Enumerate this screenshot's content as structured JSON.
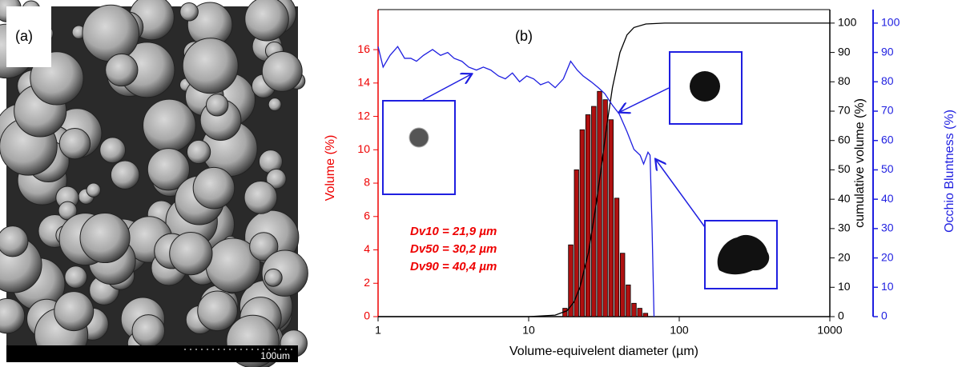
{
  "panel_a": {
    "label": "(a)",
    "scale_bar": "100um"
  },
  "chart_data": {
    "type": "histogram",
    "panel_label": "(b)",
    "xlabel": "Volume-equivelent diameter (µm)",
    "ylabel": "Volume (%)",
    "y2label": "cumulative volume (%)",
    "y3label": "Occhio Bluntness (%)",
    "log_x": true,
    "xlim": [
      1,
      1000
    ],
    "xticks": [
      1,
      10,
      100,
      1000
    ],
    "ylim": [
      0,
      18.4
    ],
    "yticks": [
      0,
      2,
      4,
      6,
      8,
      10,
      12,
      14,
      16
    ],
    "y2lim": [
      0,
      104.6
    ],
    "y2ticks": [
      0,
      10,
      20,
      30,
      40,
      50,
      60,
      70,
      80,
      90,
      100
    ],
    "y3lim": [
      0,
      104.6
    ],
    "y3ticks": [
      0,
      10,
      20,
      30,
      40,
      50,
      60,
      70,
      80,
      90,
      100
    ],
    "color": "#b01010",
    "bins": [
      16.7,
      18.2,
      19.9,
      21.7,
      23.7,
      25.9,
      28.3,
      30.9,
      33.7,
      36.8,
      40.2,
      43.9,
      47.9,
      52.3,
      57.1,
      62.4
    ],
    "values": [
      0.5,
      4.3,
      8.8,
      11.2,
      12.1,
      12.6,
      13.5,
      13.0,
      11.8,
      7.1,
      3.8,
      1.9,
      0.8,
      0.5,
      0.2
    ],
    "lines": [
      {
        "axis": "y2",
        "color": "#000000",
        "x": [
          1,
          10,
          15,
          18,
          20,
          21.9,
          25,
          28,
          30.2,
          33,
          36,
          40.4,
          45,
          50,
          60,
          80,
          1000
        ],
        "values": [
          0,
          0,
          0.5,
          2,
          5,
          10,
          22,
          38,
          50,
          65,
          78,
          90,
          96,
          98.5,
          99.7,
          100,
          100
        ]
      },
      {
        "axis": "y3",
        "color": "#1f1fe0",
        "x": [
          1,
          1.08,
          1.2,
          1.35,
          1.5,
          1.65,
          1.8,
          2.0,
          2.3,
          2.6,
          2.9,
          3.2,
          3.6,
          4.0,
          4.5,
          5.0,
          5.6,
          6.3,
          7.0,
          7.8,
          8.7,
          9.7,
          10.8,
          12,
          13.5,
          15,
          17,
          19,
          21,
          23,
          26,
          29,
          32,
          36,
          40,
          45,
          50,
          55,
          58,
          62,
          64,
          66,
          68
        ],
        "values": [
          92,
          85,
          89,
          92,
          88,
          88,
          87,
          89,
          91,
          89,
          90,
          88,
          87,
          85,
          84,
          85,
          84,
          82,
          81,
          83,
          80,
          82,
          81,
          79,
          80,
          78,
          81,
          87,
          84,
          82,
          80,
          78,
          76,
          72,
          69,
          63,
          57,
          55,
          52,
          56,
          55,
          30,
          0
        ]
      }
    ],
    "annotations": [
      "Dv10 = 21,9 µm",
      "Dv50 = 30,2 µm",
      "Dv90 = 40,4 µm"
    ]
  }
}
